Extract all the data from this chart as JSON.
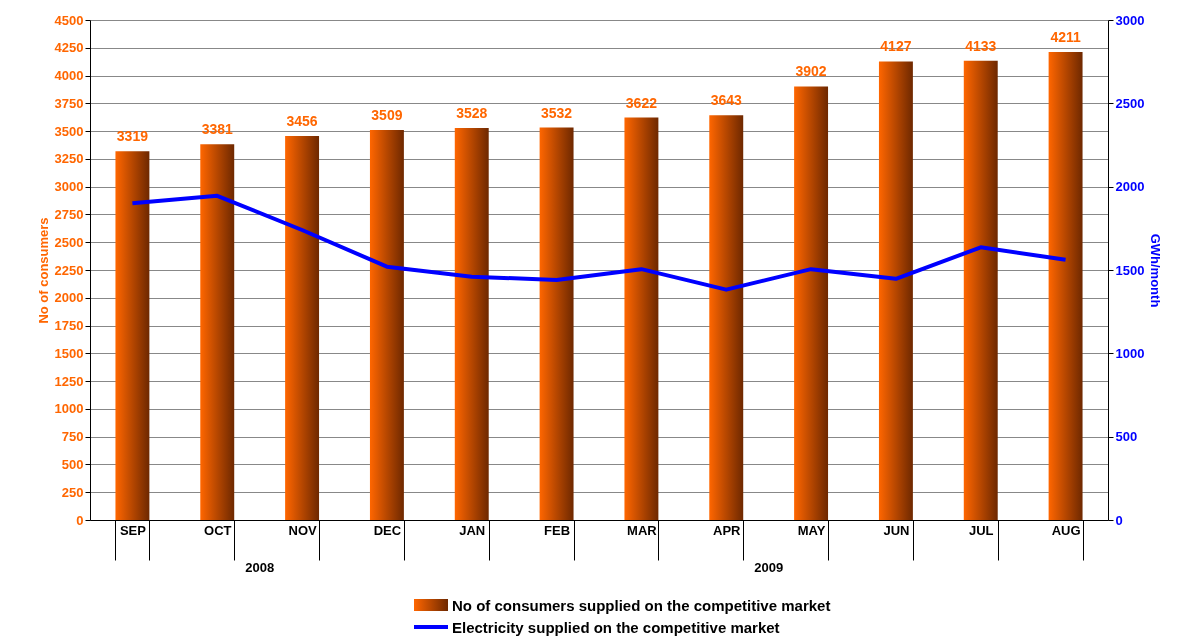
{
  "chart_data": {
    "type": "bar",
    "categories": [
      "SEP",
      "OCT",
      "NOV",
      "DEC",
      "JAN",
      "FEB",
      "MAR",
      "APR",
      "MAY",
      "JUN",
      "JUL",
      "AUG"
    ],
    "ylabel": "No of consumers",
    "y2label": "GWh/month",
    "series": [
      {
        "name": "No of  consumers supplied on the competitive market",
        "color": "#ff6600",
        "values": [
          3319,
          3381,
          3456,
          3509,
          3528,
          3532,
          3622,
          3643,
          3902,
          4127,
          4133,
          4211
        ],
        "value_labels": [
          "3319",
          "3381",
          "3456",
          "3509",
          "3528",
          "3532",
          "3622",
          "3643",
          "3902",
          "4127",
          "4133",
          "4211"
        ]
      },
      {
        "type": "line",
        "name": "Electricity supplied on the competitive market",
        "color": "#0000ff",
        "axis": "y2",
        "values": [
          1900,
          1945,
          1740,
          1520,
          1460,
          1440,
          1505,
          1382,
          1505,
          1447,
          1636,
          1562
        ]
      }
    ],
    "ylim": [
      0,
      4500
    ],
    "yticks": [
      0,
      250,
      500,
      750,
      1000,
      1250,
      1500,
      1750,
      2000,
      2250,
      2500,
      2750,
      3000,
      3250,
      3500,
      3750,
      4000,
      4250,
      4500
    ],
    "y2lim": [
      0,
      3000
    ],
    "y2ticks": [
      0,
      500,
      1000,
      1500,
      2000,
      2500,
      3000
    ],
    "grid": "y",
    "legend": "bottom",
    "annotations": [
      "2008",
      "2009"
    ]
  }
}
